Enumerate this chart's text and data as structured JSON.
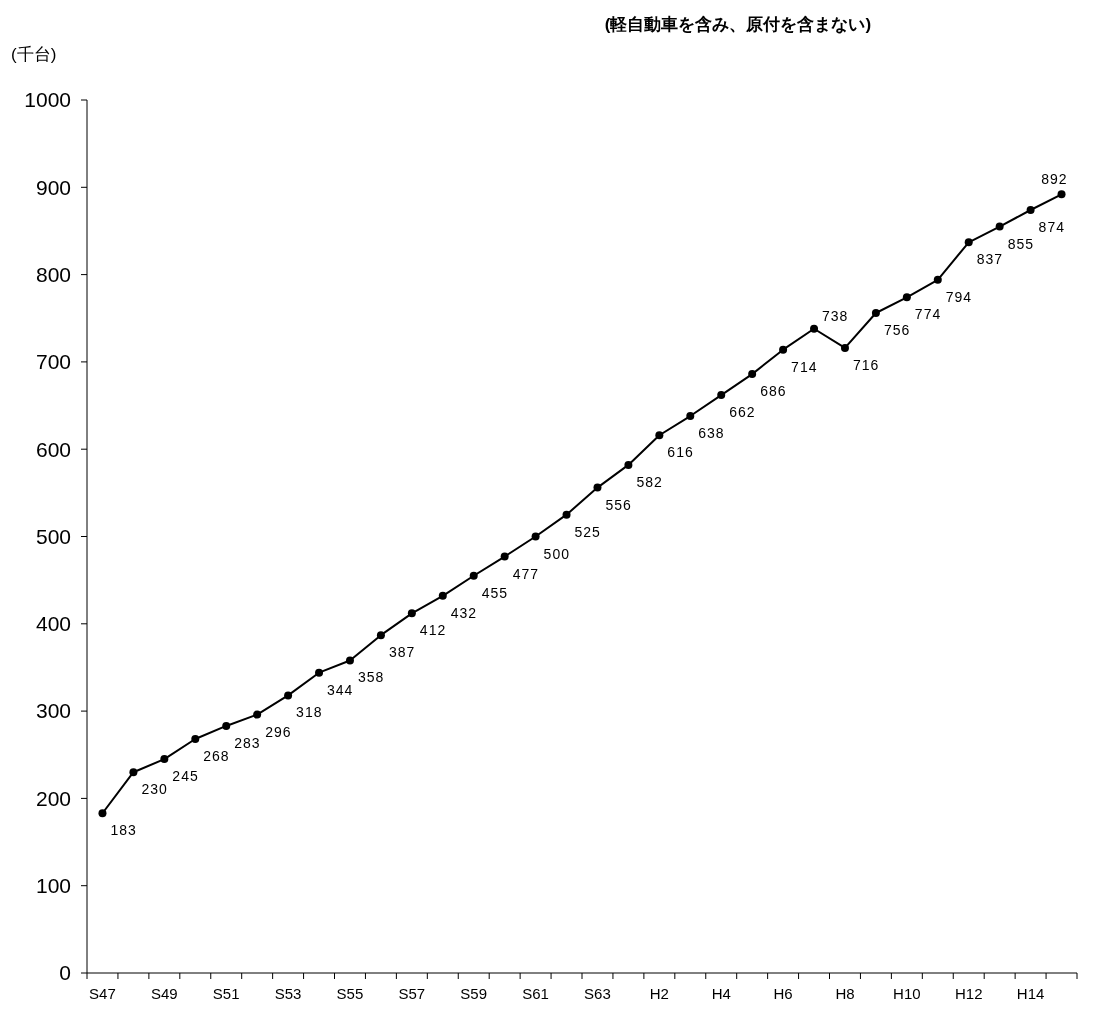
{
  "chart_data": {
    "type": "line",
    "title": "(軽自動車を含み、原付を含まない)",
    "ylabel": "(千台)",
    "categories": [
      "S47",
      null,
      "S49",
      null,
      "S51",
      null,
      "S53",
      null,
      "S55",
      null,
      "S57",
      null,
      "S59",
      null,
      "S61",
      null,
      "S63",
      null,
      "H2",
      null,
      "H4",
      null,
      "H6",
      null,
      "H8",
      null,
      "H10",
      null,
      "H12",
      null,
      "H14",
      null
    ],
    "series": [
      {
        "color": "#000000",
        "values": [
          183,
          230,
          245,
          268,
          283,
          296,
          318,
          344,
          358,
          387,
          412,
          432,
          455,
          477,
          500,
          525,
          556,
          582,
          616,
          638,
          662,
          686,
          714,
          738,
          716,
          756,
          774,
          794,
          837,
          855,
          874,
          892
        ]
      }
    ],
    "ylim": [
      0,
      1000
    ],
    "yticks": [
      0,
      100,
      200,
      300,
      400,
      500,
      600,
      700,
      800,
      900,
      1000
    ],
    "grid": false,
    "marker": "circle",
    "line_style": "solid",
    "data_labels": true
  }
}
